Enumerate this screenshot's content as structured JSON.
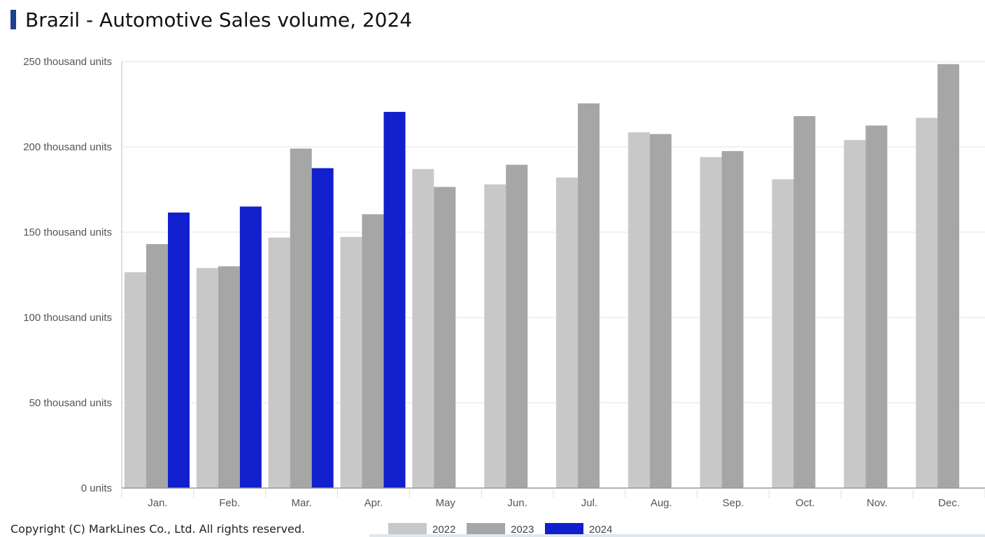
{
  "page": {
    "title": "Brazil - Automotive Sales volume, 2024",
    "copyright": "Copyright (C) MarkLines Co., Ltd. All rights reserved.",
    "accent_color": "#1f3f8f"
  },
  "chart_data": {
    "type": "bar",
    "title": "Brazil - Automotive Sales volume, 2024",
    "xlabel": "",
    "ylabel": "",
    "ylim": [
      0,
      250000
    ],
    "yticks": [
      0,
      50000,
      100000,
      150000,
      200000,
      250000
    ],
    "ytick_labels": [
      "0 units",
      "50 thousand units",
      "100 thousand units",
      "150 thousand units",
      "200 thousand units",
      "250 thousand units"
    ],
    "grid": true,
    "legend_position": "bottom",
    "categories": [
      "Jan.",
      "Feb.",
      "Mar.",
      "Apr.",
      "May",
      "Jun.",
      "Jul.",
      "Aug.",
      "Sep.",
      "Oct.",
      "Nov.",
      "Dec."
    ],
    "series": [
      {
        "name": "2022",
        "color": "#c8c8c8",
        "values": [
          126500,
          129000,
          146800,
          147200,
          187000,
          178000,
          182000,
          208500,
          194000,
          181000,
          204000,
          217000
        ]
      },
      {
        "name": "2023",
        "color": "#a6a6a6",
        "values": [
          143000,
          130000,
          199000,
          160500,
          176500,
          189500,
          225500,
          207500,
          197500,
          218000,
          212500,
          248500
        ]
      },
      {
        "name": "2024",
        "color": "#121fcc",
        "values": [
          161500,
          165000,
          187500,
          220500,
          null,
          null,
          null,
          null,
          null,
          null,
          null,
          null
        ]
      }
    ]
  }
}
